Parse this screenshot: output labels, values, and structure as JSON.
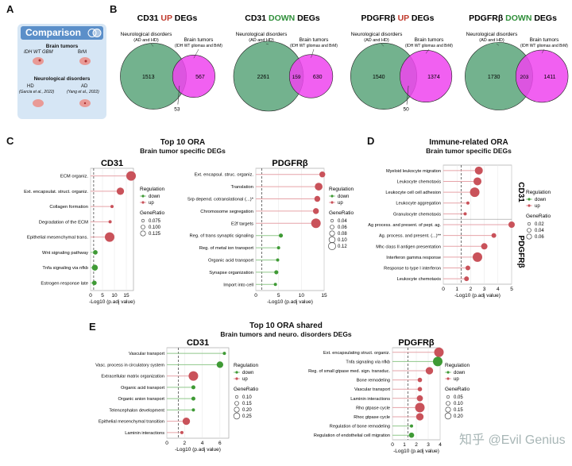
{
  "panel_letters": {
    "A": "A",
    "B": "B",
    "C": "C",
    "D": "D",
    "E": "E"
  },
  "panelA": {
    "title": "Comparison",
    "sub1": "Brain tumors",
    "gbm": "IDH WT GBM",
    "brm": "BrM",
    "sub2": "Neurological disorders",
    "hd": "HD",
    "hd_cite": "(Garcia et al., 2022)",
    "ad": "AD",
    "ad_cite": "(Yang et al., 2022)",
    "colors": {
      "card": "#d6e6f5",
      "title_bar": "#5b8fc9",
      "brain": "#e99a96"
    }
  },
  "panelB": {
    "left_label": "Neurological disorders",
    "left_sub": "(AD and HD)",
    "right_label": "Brain tumors",
    "right_sub": "(IDH WT gliomas and BrM)",
    "colors": {
      "green": "#5aa57a",
      "magenta": "#ee44ee"
    },
    "venns": [
      {
        "title_a": "CD31",
        "title_b": "UP",
        "title_c": "DEGs",
        "dir": "up",
        "left": "1513",
        "overlap": "53",
        "right": "567"
      },
      {
        "title_a": "CD31",
        "title_b": "DOWN",
        "title_c": "DEGs",
        "dir": "down",
        "left": "2261",
        "overlap": "159",
        "right": "630"
      },
      {
        "title_a": "PDGFRβ",
        "title_b": "UP",
        "title_c": "DEGs",
        "dir": "up",
        "left": "1540",
        "overlap": "50",
        "right": "1374"
      },
      {
        "title_a": "PDGFRβ",
        "title_b": "DOWN",
        "title_c": "DEGs",
        "dir": "down",
        "left": "1730",
        "overlap": "203",
        "right": "1411"
      }
    ]
  },
  "panelC": {
    "title1": "Top 10 ORA",
    "title2": "Brain tumor specific DEGs",
    "xlabel": "-Log10 (p.adj value)"
  },
  "panelD": {
    "title1": "Immune-related ORA",
    "title2": "Brain tumor specific DEGs",
    "xlabel": "-Log10 (p.adj value)"
  },
  "panelE": {
    "title1": "Top 10 ORA shared",
    "title2": "Brain tumors and neuro. disorders DEGs",
    "xlabel": "-Log10 (p.adj value)"
  },
  "legends": {
    "regulation": "Regulation",
    "down": "down",
    "up": "up",
    "generatio": "GeneRatio",
    "colors": {
      "up": "#c9525a",
      "down": "#3f9a35",
      "stem_up": "#e6a3a8",
      "stem_down": "#8fc78a"
    }
  },
  "watermark": "知乎 @Evil Genius",
  "chart_data": [
    {
      "id": "C-CD31",
      "type": "scatter",
      "title": "CD31",
      "xlabel": "-Log10 (p.adj value)",
      "xlim": [
        0,
        18
      ],
      "xticks": [
        0,
        5,
        10,
        15
      ],
      "threshold": 1.3,
      "generatio_legend": [
        "0.075",
        "0.100",
        "0.125"
      ],
      "terms": [
        {
          "label": "ECM organiz.",
          "x": 17,
          "reg": "up",
          "gr": 0.125
        },
        {
          "label": "Ext. encapsulat. struct. organiz.",
          "x": 12.5,
          "reg": "up",
          "gr": 0.11
        },
        {
          "label": "Collagen formation",
          "x": 9,
          "reg": "up",
          "gr": 0.08
        },
        {
          "label": "Degradation  of the ECM",
          "x": 8.2,
          "reg": "up",
          "gr": 0.08
        },
        {
          "label": "Epithelial mesenchymal trans.",
          "x": 8,
          "reg": "up",
          "gr": 0.125
        },
        {
          "label": "Wnt signaling pathway",
          "x": 2,
          "reg": "down",
          "gr": 0.09
        },
        {
          "label": "Tnfa signaling via nfkb",
          "x": 1.8,
          "reg": "down",
          "gr": 0.1
        },
        {
          "label": "Estrogen response late",
          "x": 1.6,
          "reg": "down",
          "gr": 0.09
        }
      ]
    },
    {
      "id": "C-PDGFRb",
      "type": "scatter",
      "title": "PDGFRβ",
      "xlabel": "-Log10 (p.adj value)",
      "xlim": [
        0,
        15
      ],
      "xticks": [
        0,
        5,
        10,
        15
      ],
      "threshold": 1.3,
      "generatio_legend": [
        "0.04",
        "0.06",
        "0.08",
        "0.10",
        "0.12"
      ],
      "terms": [
        {
          "label": "Ext. encapsul. struc. organiz.",
          "x": 14.6,
          "reg": "up",
          "gr": 0.08
        },
        {
          "label": "Translation",
          "x": 13.8,
          "reg": "up",
          "gr": 0.1
        },
        {
          "label": "Srp depend. cotranslational (...)*",
          "x": 13.5,
          "reg": "up",
          "gr": 0.08
        },
        {
          "label": "Chromosome segregation",
          "x": 13.2,
          "reg": "up",
          "gr": 0.08
        },
        {
          "label": "E2f targets",
          "x": 13.2,
          "reg": "up",
          "gr": 0.12
        },
        {
          "label": "Reg. of trans synaptic signaling",
          "x": 5.5,
          "reg": "down",
          "gr": 0.06
        },
        {
          "label": "Reg. of metal ion transport",
          "x": 5,
          "reg": "down",
          "gr": 0.05
        },
        {
          "label": "Organic acid transport",
          "x": 4.8,
          "reg": "down",
          "gr": 0.05
        },
        {
          "label": "Synapse organization",
          "x": 4.5,
          "reg": "down",
          "gr": 0.06
        },
        {
          "label": "Import into cell",
          "x": 4.3,
          "reg": "down",
          "gr": 0.05
        }
      ]
    },
    {
      "id": "D",
      "type": "scatter",
      "title": "",
      "xlabel": "-Log10 (p.adj value)",
      "xlim": [
        0,
        5
      ],
      "xticks": [
        0,
        1,
        2,
        3,
        4,
        5
      ],
      "threshold": 1.3,
      "generatio_legend": [
        "0.02",
        "0.04",
        "0.06"
      ],
      "groups": [
        {
          "name": "CD31",
          "terms": [
            {
              "label": "Myeloid leukocyte migration",
              "x": 2.6,
              "reg": "up",
              "gr": 0.05
            },
            {
              "label": "Leukocyte chemotaxis",
              "x": 2.5,
              "reg": "up",
              "gr": 0.05
            },
            {
              "label": "Leukocyte cell cell adhesion",
              "x": 2.3,
              "reg": "up",
              "gr": 0.06
            },
            {
              "label": "Leukocyte aggregation",
              "x": 1.8,
              "reg": "up",
              "gr": 0.02
            },
            {
              "label": "Granulocyte chemotaxis",
              "x": 1.6,
              "reg": "up",
              "gr": 0.02
            }
          ]
        },
        {
          "name": "PDGFRβ",
          "terms": [
            {
              "label": "Ag process. and present. of pept. ag.",
              "x": 5,
              "reg": "up",
              "gr": 0.04
            },
            {
              "label": "Ag. process. and present. (...)**",
              "x": 3.7,
              "reg": "up",
              "gr": 0.03
            },
            {
              "label": "Mhc class II antigen presentation",
              "x": 3,
              "reg": "up",
              "gr": 0.04
            },
            {
              "label": "Interferon gamma response",
              "x": 2.5,
              "reg": "up",
              "gr": 0.06
            },
            {
              "label": "Response to type I interferon",
              "x": 1.8,
              "reg": "up",
              "gr": 0.03
            },
            {
              "label": "Leukocyte chemotaxis",
              "x": 1.7,
              "reg": "up",
              "gr": 0.03
            }
          ]
        }
      ]
    },
    {
      "id": "E-CD31",
      "type": "scatter",
      "title": "CD31",
      "xlabel": "-Log10 (p.adj value)",
      "xlim": [
        0,
        7
      ],
      "xticks": [
        0,
        2,
        4,
        6
      ],
      "threshold": 1.3,
      "generatio_legend": [
        "0.10",
        "0.15",
        "0.20",
        "0.25"
      ],
      "terms": [
        {
          "label": "Vascular transport",
          "x": 6.5,
          "reg": "down",
          "gr": 0.1
        },
        {
          "label": "Vasc. process in circulatory system",
          "x": 6,
          "reg": "down",
          "gr": 0.18
        },
        {
          "label": "Extracellular matrix organization",
          "x": 3,
          "reg": "up",
          "gr": 0.25
        },
        {
          "label": "Organic acid transport",
          "x": 3,
          "reg": "down",
          "gr": 0.12
        },
        {
          "label": "Organic anion transport",
          "x": 3,
          "reg": "down",
          "gr": 0.12
        },
        {
          "label": "Telencephalon development",
          "x": 3,
          "reg": "down",
          "gr": 0.1
        },
        {
          "label": "Epithelial mesenchymal transition",
          "x": 2.2,
          "reg": "up",
          "gr": 0.2
        },
        {
          "label": "Laminin interactions",
          "x": 1.7,
          "reg": "up",
          "gr": 0.1
        }
      ]
    },
    {
      "id": "E-PDGFRb",
      "type": "scatter",
      "title": "PDGFRβ",
      "xlabel": "-Log10 (p.adj value)",
      "xlim": [
        0,
        4
      ],
      "xticks": [
        0,
        1,
        2,
        3,
        4
      ],
      "threshold": 1.3,
      "generatio_legend": [
        "0.05",
        "0.10",
        "0.15",
        "0.20"
      ],
      "terms": [
        {
          "label": "Ext. encapsulating struct. organiz.",
          "x": 3.9,
          "reg": "up",
          "gr": 0.2
        },
        {
          "label": "Tnfa signaling via nfkb",
          "x": 3.8,
          "reg": "down",
          "gr": 0.2
        },
        {
          "label": "Reg. of small gtpase med. sign. transduc.",
          "x": 3.1,
          "reg": "up",
          "gr": 0.15
        },
        {
          "label": "Bone remodeling",
          "x": 2.3,
          "reg": "up",
          "gr": 0.08
        },
        {
          "label": "Vascular transport",
          "x": 2.3,
          "reg": "up",
          "gr": 0.08
        },
        {
          "label": "Laminin interactions",
          "x": 2.3,
          "reg": "up",
          "gr": 0.12
        },
        {
          "label": "Rho gtpase cycle",
          "x": 2.3,
          "reg": "up",
          "gr": 0.2
        },
        {
          "label": "Rhoc gtpase cycle",
          "x": 2.3,
          "reg": "up",
          "gr": 0.15
        },
        {
          "label": "Regulation of bone remodeling",
          "x": 1.6,
          "reg": "down",
          "gr": 0.05
        },
        {
          "label": "Regulation of endothelial cell migration",
          "x": 1.6,
          "reg": "down",
          "gr": 0.1
        }
      ]
    }
  ]
}
